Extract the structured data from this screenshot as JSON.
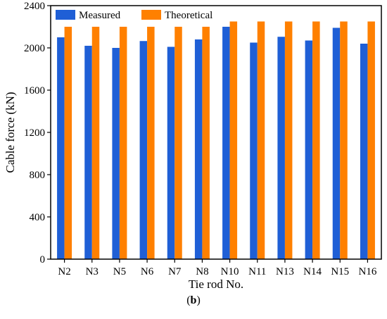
{
  "panel_label": {
    "open": "(",
    "letter": "b",
    "close": ")"
  },
  "colors": {
    "measured": "#1f5fd6",
    "theoretical": "#ff8000",
    "axis": "#000000"
  },
  "chart_data": {
    "type": "bar",
    "xlabel": "Tie rod No.",
    "ylabel": "Cable force (kN)",
    "ylim": [
      0,
      2400
    ],
    "yticks": [
      0,
      400,
      800,
      1200,
      1600,
      2000,
      2400
    ],
    "grid": false,
    "legend_position": "top-left, inside, horizontal",
    "categories": [
      "N2",
      "N3",
      "N5",
      "N6",
      "N7",
      "N8",
      "N10",
      "N11",
      "N13",
      "N14",
      "N15",
      "N16"
    ],
    "series": [
      {
        "name": "Measured",
        "values": [
          2100,
          2020,
          2000,
          2065,
          2010,
          2080,
          2200,
          2050,
          2105,
          2070,
          2190,
          2040
        ]
      },
      {
        "name": "Theoretical",
        "values": [
          2200,
          2200,
          2200,
          2200,
          2200,
          2200,
          2250,
          2250,
          2250,
          2250,
          2250,
          2250
        ]
      }
    ]
  }
}
